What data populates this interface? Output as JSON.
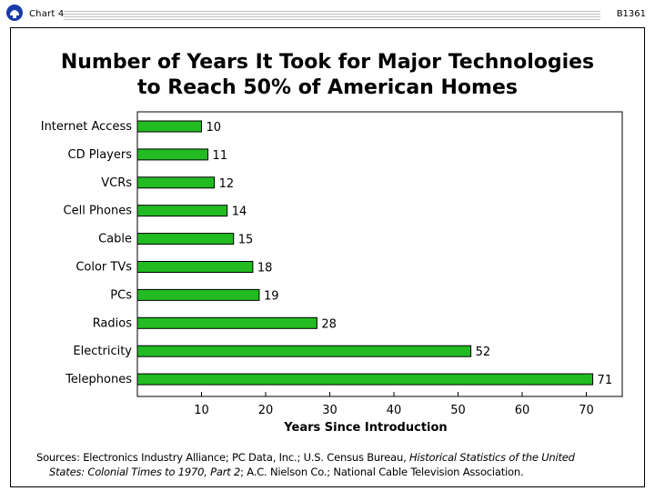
{
  "header": {
    "chart_label": "Chart 4",
    "code": "B1361",
    "logo_icon": "bell-telephone-logo-icon"
  },
  "chart_data": {
    "type": "bar",
    "orientation": "horizontal",
    "title_line1": "Number of Years It Took for Major Technologies",
    "title_line2": "to Reach 50% of American Homes",
    "categories": [
      "Internet Access",
      "CD Players",
      "VCRs",
      "Cell Phones",
      "Cable",
      "Color TVs",
      "PCs",
      "Radios",
      "Electricity",
      "Telephones"
    ],
    "values": [
      10,
      11,
      12,
      14,
      15,
      18,
      19,
      28,
      52,
      71
    ],
    "xlabel": "Years Since Introduction",
    "ylabel": "",
    "xlim": [
      0,
      75
    ],
    "xticks": [
      10,
      20,
      30,
      40,
      50,
      60,
      70
    ],
    "bar_color": "#22bb22",
    "bar_edge_color": "#000000",
    "grid": false
  },
  "sources": {
    "prefix": "Sources: Electronics Industry Alliance; PC Data, Inc.; U.S. Census Bureau, ",
    "italic1": "Historical Statistics of the United",
    "italic2": "States: Colonial Times to 1970, Part 2",
    "suffix": "; A.C. Nielson Co.; National Cable Television Association."
  }
}
